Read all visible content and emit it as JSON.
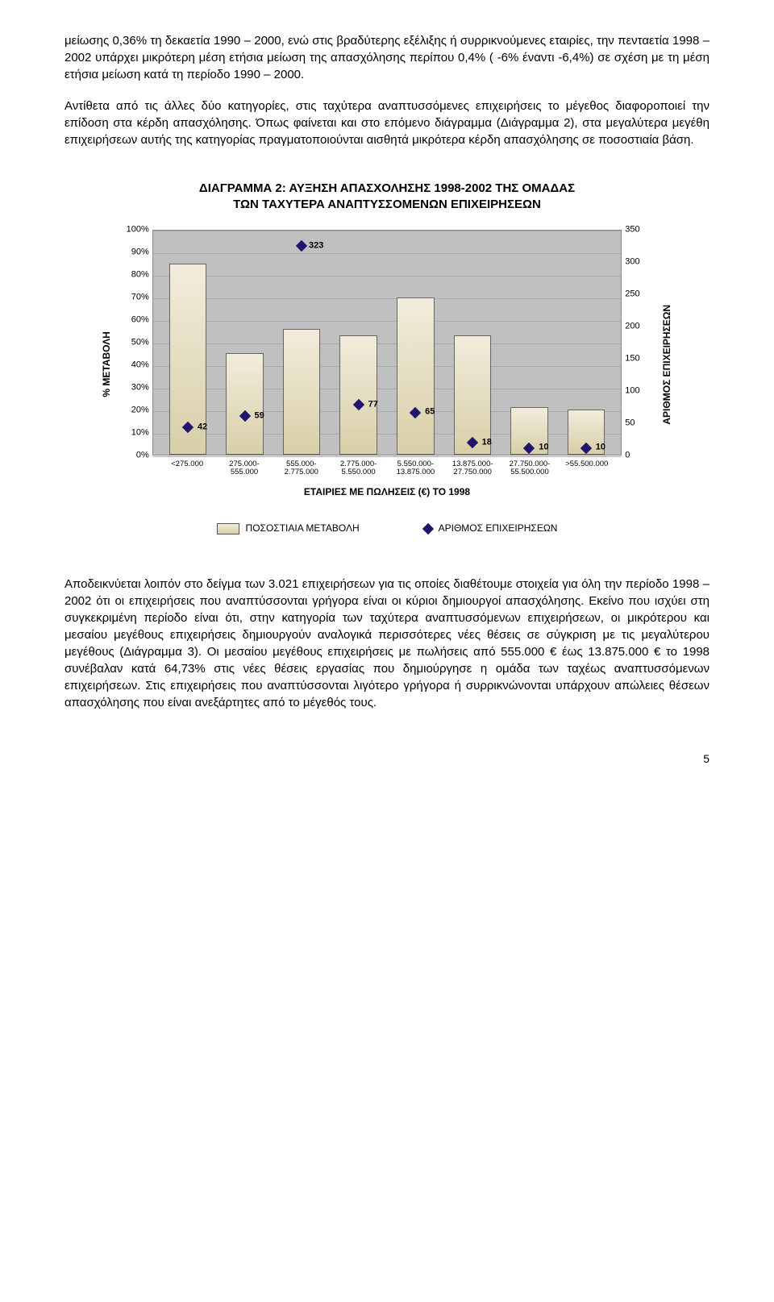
{
  "paragraphs": {
    "p1": "μείωσης 0,36% τη δεκαετία 1990 – 2000, ενώ  στις βραδύτερης εξέλιξης ή συρρικνούμενες εταιρίες, την πενταετία 1998 – 2002 υπάρχει μικρότερη μέση ετήσια μείωση της απασχόλησης περίπου 0,4% ( -6% έναντι -6,4%) σε σχέση με τη μέση ετήσια μείωση κατά τη περίοδο 1990 – 2000.",
    "p2": "Αντίθετα από τις άλλες δύο κατηγορίες, στις ταχύτερα αναπτυσσόμενες επιχειρήσεις το μέγεθος διαφοροποιεί την επίδοση στα κέρδη απασχόλησης. Όπως φαίνεται και στο επόμενο διάγραμμα (Διάγραμμα 2), στα μεγαλύτερα μεγέθη επιχειρήσεων αυτής της κατηγορίας πραγματοποιούνται αισθητά μικρότερα κέρδη απασχόλησης σε ποσοστιαία βάση.",
    "p3": "Αποδεικνύεται λοιπόν στο δείγμα των 3.021 επιχειρήσεων για τις οποίες διαθέτουμε στοιχεία για όλη την περίοδο 1998 – 2002 ότι οι επιχειρήσεις που αναπτύσσονται γρήγορα είναι οι κύριοι δημιουργοί απασχόλησης. Εκείνο που ισχύει στη συγκεκριμένη περίοδο είναι ότι, στην κατηγορία των ταχύτερα αναπτυσσόμενων επιχειρήσεων, οι μικρότερου και μεσαίου μεγέθους επιχειρήσεις δημιουργούν αναλογικά περισσότερες νέες θέσεις σε σύγκριση με τις μεγαλύτερου μεγέθους (Διάγραμμα 3). Οι μεσαίου μεγέθους επιχειρήσεις με πωλήσεις από 555.000 € έως 13.875.000 € το 1998 συνέβαλαν κατά 64,73% στις νέες θέσεις εργασίας που δημιούργησε η ομάδα των ταχέως αναπτυσσόμενων επιχειρήσεων. Στις επιχειρήσεις που αναπτύσσονται λιγότερο γρήγορα ή συρρικνώνονται υπάρχουν απώλειες θέσεων απασχόλησης που είναι ανεξάρτητες από το μέγεθός τους."
  },
  "chart": {
    "title_l1": "ΔΙΑΓΡΑΜΜΑ 2:  ΑΥΞΗΣΗ ΑΠΑΣΧΟΛΗΣΗΣ 1998-2002 ΤΗΣ ΟΜΑΔΑΣ",
    "title_l2": "ΤΩΝ ΤΑΧΥΤΕΡΑ ΑΝΑΠΤΥΣΣΟΜΕΝΩΝ ΕΠΙΧΕΙΡΗΣΕΩΝ",
    "ylabel_left": "% ΜΕΤΑΒΟΛΗ",
    "ylabel_right": "ΑΡΙΘΜΟΣ ΕΠΙΧΕΙΡΗΣΕΩΝ",
    "xlabel": "ΕΤΑΙΡΙΕΣ ΜΕ ΠΩΛΗΣΕΙΣ (€) ΤΟ 1998",
    "left_ticks": [
      "100%",
      "90%",
      "80%",
      "70%",
      "60%",
      "50%",
      "40%",
      "30%",
      "20%",
      "10%",
      "0%"
    ],
    "right_ticks": [
      "350",
      "300",
      "250",
      "200",
      "150",
      "100",
      "50",
      "0"
    ],
    "left_max": 100,
    "right_max": 350,
    "categories": [
      "<275.000",
      "275.000- 555.000",
      "555.000- 2.775.000",
      "2.775.000- 5.550.000",
      "5.550.000- 13.875.000",
      "13.875.000- 27.750.000",
      "27.750.000- 55.500.000",
      ">55.500.000"
    ],
    "bars_pct": [
      85,
      45,
      56,
      53,
      70,
      53,
      21,
      20
    ],
    "markers_count": [
      42,
      59,
      323,
      77,
      65,
      18,
      10,
      10
    ],
    "bar_fill_top": "#f2ecdc",
    "bar_fill_bot": "#d8cfa8",
    "plot_bg": "#c0c0c0",
    "marker_color": "#1f1570",
    "legend_bar": "ΠΟΣΟΣΤΙΑΙΑ ΜΕΤΑΒΟΛΗ",
    "legend_marker": "ΑΡΙΘΜΟΣ ΕΠΙΧΕΙΡΗΣΕΩΝ"
  },
  "page_number": "5"
}
